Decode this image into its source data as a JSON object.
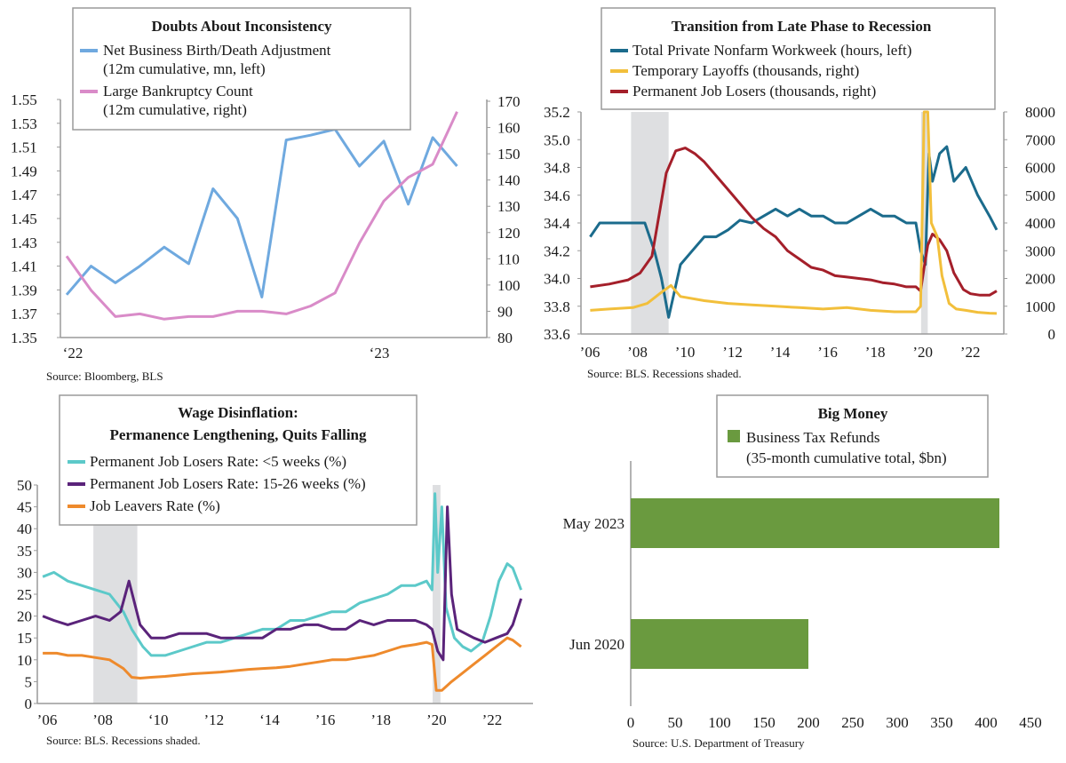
{
  "colors": {
    "blue": "#6fa9df",
    "pink": "#d98bc8",
    "teal": "#1b6b8c",
    "gold": "#f2bf3b",
    "red": "#a41f2a",
    "cyan": "#5cc9c9",
    "purple": "#5a237a",
    "orange": "#ee8a2c",
    "green": "#6a9a3f",
    "shade": "#dedfe1",
    "axis": "#9a9a9a"
  },
  "chart_data": [
    {
      "id": "c1",
      "type": "line",
      "title": "Doubts About Inconsistency",
      "legend": [
        "Net Business Birth/Death Adjustment",
        "(12m cumulative, mn, left)",
        "Large Bankruptcy Count",
        "(12m cumulative, right)"
      ],
      "x_ticks": [
        "‘22",
        "‘23"
      ],
      "y_left_ticks": [
        "1.55",
        "1.53",
        "1.51",
        "1.49",
        "1.47",
        "1.45",
        "1.43",
        "1.41",
        "1.39",
        "1.37",
        "1.35"
      ],
      "y_right_ticks": [
        "170",
        "160",
        "150",
        "140",
        "130",
        "120",
        "110",
        "100",
        "90",
        "80"
      ],
      "ylim_left": [
        1.35,
        1.55
      ],
      "ylim_right": [
        80,
        170
      ],
      "xlim": [
        0,
        17
      ],
      "series": [
        {
          "axis": "left",
          "color_key": "blue",
          "x": [
            0,
            1,
            2,
            3,
            4,
            5,
            6,
            7,
            8,
            9,
            10,
            11,
            12,
            13,
            14,
            15,
            16
          ],
          "values": [
            1.386,
            1.41,
            1.396,
            1.41,
            1.426,
            1.412,
            1.475,
            1.45,
            1.384,
            1.516,
            1.52,
            1.525,
            1.494,
            1.515,
            1.462,
            1.518,
            1.494
          ]
        },
        {
          "axis": "right",
          "color_key": "pink",
          "x": [
            0,
            1,
            2,
            3,
            4,
            5,
            6,
            7,
            8,
            9,
            10,
            11,
            12,
            13,
            14,
            15,
            16
          ],
          "values": [
            111,
            98,
            88,
            89,
            87,
            88,
            88,
            90,
            90,
            89,
            92,
            97,
            116,
            132,
            141,
            146,
            166
          ]
        }
      ],
      "source": "Source: Bloomberg, BLS"
    },
    {
      "id": "c2",
      "type": "line",
      "title": "Transition from Late Phase to Recession",
      "legend": [
        "Total Private Nonfarm Workweek (hours, left)",
        "Temporary Layoffs (thousands, right)",
        "Permanent Job Losers (thousands, right)"
      ],
      "x_ticks": [
        "’06",
        "’08",
        "’10",
        "’12",
        "’14",
        "’16",
        "’18",
        "’20",
        "’22"
      ],
      "y_left_ticks": [
        "35.2",
        "35.0",
        "34.8",
        "34.6",
        "34.4",
        "34.2",
        "34.0",
        "33.8",
        "33.6"
      ],
      "y_right_ticks": [
        "8000",
        "7000",
        "6000",
        "5000",
        "4000",
        "3000",
        "2000",
        "1000",
        "0"
      ],
      "ylim_left": [
        33.6,
        35.2
      ],
      "ylim_right": [
        0,
        8000
      ],
      "xlim": [
        2006,
        2023.6
      ],
      "recessions": [
        [
          2007.92,
          2009.5
        ],
        [
          2020.12,
          2020.4
        ]
      ],
      "series": [
        {
          "axis": "left",
          "color_key": "teal",
          "x": [
            2006.2,
            2006.6,
            2007,
            2007.5,
            2008,
            2008.5,
            2008.9,
            2009.2,
            2009.5,
            2010,
            2010.5,
            2011,
            2011.5,
            2012,
            2012.5,
            2013,
            2013.5,
            2014,
            2014.5,
            2015,
            2015.5,
            2016,
            2016.5,
            2017,
            2017.5,
            2018,
            2018.5,
            2019,
            2019.5,
            2019.9,
            2020.1,
            2020.3,
            2020.45,
            2020.6,
            2020.9,
            2021.2,
            2021.5,
            2022,
            2022.5,
            2023,
            2023.3
          ],
          "values": [
            34.3,
            34.4,
            34.4,
            34.4,
            34.4,
            34.4,
            34.2,
            34.0,
            33.72,
            34.1,
            34.2,
            34.3,
            34.3,
            34.35,
            34.42,
            34.4,
            34.45,
            34.5,
            34.45,
            34.5,
            34.45,
            34.45,
            34.4,
            34.4,
            34.45,
            34.5,
            34.45,
            34.45,
            34.4,
            34.4,
            34.2,
            34.1,
            34.9,
            34.7,
            34.9,
            34.95,
            34.7,
            34.8,
            34.6,
            34.45,
            34.35
          ]
        },
        {
          "axis": "right",
          "color_key": "gold",
          "x": [
            2006.2,
            2007,
            2008,
            2008.6,
            2009.2,
            2009.6,
            2010,
            2011,
            2012,
            2013,
            2014,
            2015,
            2016,
            2017,
            2018,
            2019,
            2019.9,
            2020.1,
            2020.25,
            2020.4,
            2020.55,
            2020.8,
            2021,
            2021.3,
            2021.6,
            2022,
            2022.5,
            2023,
            2023.3
          ],
          "values": [
            850,
            900,
            950,
            1100,
            1500,
            1750,
            1350,
            1200,
            1100,
            1050,
            1000,
            950,
            900,
            950,
            850,
            800,
            800,
            1000,
            8000,
            8000,
            4000,
            3500,
            2100,
            1100,
            900,
            850,
            780,
            750,
            740
          ]
        },
        {
          "axis": "right",
          "color_key": "red",
          "x": [
            2006.2,
            2007,
            2007.8,
            2008.3,
            2008.8,
            2009.1,
            2009.4,
            2009.8,
            2010.2,
            2010.6,
            2011,
            2011.5,
            2012,
            2012.5,
            2013,
            2013.5,
            2014,
            2014.5,
            2015,
            2015.5,
            2016,
            2016.5,
            2017,
            2017.5,
            2018,
            2018.5,
            2019,
            2019.5,
            2019.9,
            2020.1,
            2020.25,
            2020.4,
            2020.6,
            2020.9,
            2021.2,
            2021.5,
            2021.9,
            2022.2,
            2022.6,
            2023,
            2023.3
          ],
          "values": [
            1700,
            1800,
            1950,
            2200,
            2800,
            4300,
            5800,
            6600,
            6700,
            6500,
            6200,
            5700,
            5200,
            4700,
            4200,
            3800,
            3500,
            3000,
            2700,
            2400,
            2300,
            2100,
            2050,
            2000,
            1950,
            1850,
            1800,
            1700,
            1700,
            1550,
            2400,
            3200,
            3600,
            3400,
            3000,
            2200,
            1600,
            1450,
            1400,
            1400,
            1550
          ]
        }
      ],
      "source": "Source: BLS. Recessions shaded."
    },
    {
      "id": "c3",
      "type": "line",
      "title": "Wage Disinflation:",
      "subtitle": "Permanence Lengthening, Quits Falling",
      "legend": [
        "Permanent Job Losers Rate: <5 weeks (%)",
        "Permanent Job Losers Rate: 15-26 weeks (%)",
        "Job Leavers Rate (%)"
      ],
      "x_ticks": [
        "’06",
        "’08",
        "‘10",
        "’12",
        "‘14",
        "’16",
        "’18",
        "’20",
        "’22"
      ],
      "y_ticks": [
        "50",
        "45",
        "40",
        "35",
        "30",
        "25",
        "20",
        "15",
        "10",
        "5",
        "0"
      ],
      "ylim": [
        0,
        50
      ],
      "xlim": [
        2006,
        2023.6
      ],
      "recessions": [
        [
          2007.92,
          2009.5
        ],
        [
          2020.12,
          2020.4
        ]
      ],
      "series": [
        {
          "color_key": "cyan",
          "x": [
            2006.1,
            2006.5,
            2007,
            2007.5,
            2008,
            2008.5,
            2009,
            2009.3,
            2009.7,
            2010,
            2010.5,
            2011,
            2011.5,
            2012,
            2012.5,
            2013,
            2013.5,
            2014,
            2014.5,
            2015,
            2015.5,
            2016,
            2016.5,
            2017,
            2017.5,
            2018,
            2018.5,
            2019,
            2019.5,
            2019.9,
            2020.1,
            2020.2,
            2020.3,
            2020.45,
            2020.6,
            2020.9,
            2021.2,
            2021.5,
            2021.9,
            2022.2,
            2022.5,
            2022.8,
            2023,
            2023.3
          ],
          "values": [
            29,
            30,
            28,
            27,
            26,
            25,
            21,
            17,
            13,
            11,
            11,
            12,
            13,
            14,
            14,
            15,
            16,
            17,
            17,
            19,
            19,
            20,
            21,
            21,
            23,
            24,
            25,
            27,
            27,
            28,
            26,
            48,
            30,
            45,
            22,
            15,
            13,
            12,
            14,
            20,
            28,
            32,
            31,
            26
          ]
        },
        {
          "color_key": "purple",
          "x": [
            2006.1,
            2006.5,
            2007,
            2007.5,
            2008,
            2008.5,
            2008.9,
            2009.2,
            2009.6,
            2010,
            2010.5,
            2011,
            2011.5,
            2012,
            2012.5,
            2013,
            2013.5,
            2014,
            2014.5,
            2015,
            2015.5,
            2016,
            2016.5,
            2017,
            2017.5,
            2018,
            2018.5,
            2019,
            2019.5,
            2019.9,
            2020.1,
            2020.3,
            2020.5,
            2020.65,
            2020.8,
            2021,
            2021.3,
            2021.6,
            2022,
            2022.4,
            2022.8,
            2023,
            2023.3
          ],
          "values": [
            20,
            19,
            18,
            19,
            20,
            19,
            21,
            28,
            18,
            15,
            15,
            16,
            16,
            16,
            15,
            15,
            15,
            15,
            17,
            17,
            18,
            18,
            17,
            17,
            19,
            18,
            19,
            19,
            19,
            18,
            17,
            12,
            10,
            45,
            25,
            17,
            16,
            15,
            14,
            15,
            16,
            18,
            24
          ]
        },
        {
          "color_key": "orange",
          "x": [
            2006.1,
            2006.6,
            2007,
            2007.5,
            2008,
            2008.5,
            2009,
            2009.3,
            2009.6,
            2010,
            2010.5,
            2011,
            2011.5,
            2012,
            2012.5,
            2013,
            2013.5,
            2014,
            2014.5,
            2015,
            2015.5,
            2016,
            2016.5,
            2017,
            2017.5,
            2018,
            2018.5,
            2019,
            2019.5,
            2019.9,
            2020.1,
            2020.25,
            2020.45,
            2020.8,
            2021.2,
            2021.6,
            2022,
            2022.4,
            2022.8,
            2023,
            2023.3
          ],
          "values": [
            11.5,
            11.5,
            11,
            11,
            10.5,
            10,
            8,
            6,
            5.8,
            6,
            6.2,
            6.5,
            6.8,
            7,
            7.2,
            7.5,
            7.8,
            8,
            8.2,
            8.5,
            9,
            9.5,
            10,
            10,
            10.5,
            11,
            12,
            13,
            13.5,
            14,
            13.5,
            3,
            3,
            5,
            7,
            9,
            11,
            13,
            15,
            14.5,
            13
          ]
        }
      ],
      "source": "Source: BLS. Recessions shaded."
    },
    {
      "id": "c4",
      "type": "bar",
      "orientation": "horizontal",
      "title": "Big Money",
      "legend": [
        "Business Tax Refunds",
        "(35-month cumulative total, $bn)"
      ],
      "categories": [
        "May 2023",
        "Jun 2020"
      ],
      "values": [
        415,
        200
      ],
      "x_ticks": [
        "0",
        "50",
        "100",
        "150",
        "200",
        "250",
        "300",
        "350",
        "400",
        "450"
      ],
      "xlim": [
        0,
        450
      ],
      "source": "Source: U.S. Department of Treasury"
    }
  ]
}
